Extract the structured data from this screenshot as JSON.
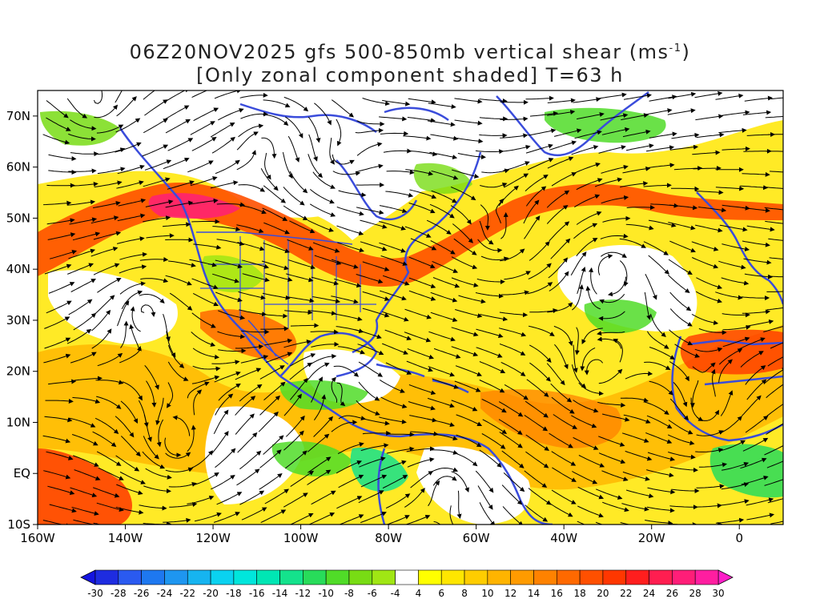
{
  "title": {
    "line1_prefix": "06Z20NOV2025 gfs 500-850mb vertical shear (ms",
    "line1_unit_exp": "-1",
    "line1_suffix": ")",
    "line2": "[Only zonal component shaded] T=63 h"
  },
  "map": {
    "lon_range": [
      -160,
      10
    ],
    "lat_range": [
      -10,
      75
    ],
    "lon_ticks": [
      {
        "value": -160,
        "label": "160W"
      },
      {
        "value": -140,
        "label": "140W"
      },
      {
        "value": -120,
        "label": "120W"
      },
      {
        "value": -100,
        "label": "100W"
      },
      {
        "value": -80,
        "label": "80W"
      },
      {
        "value": -60,
        "label": "60W"
      },
      {
        "value": -40,
        "label": "40W"
      },
      {
        "value": -20,
        "label": "20W"
      },
      {
        "value": 0,
        "label": "0"
      }
    ],
    "lat_ticks": [
      {
        "value": 70,
        "label": "70N"
      },
      {
        "value": 60,
        "label": "60N"
      },
      {
        "value": 50,
        "label": "50N"
      },
      {
        "value": 40,
        "label": "40N"
      },
      {
        "value": 30,
        "label": "30N"
      },
      {
        "value": 20,
        "label": "20N"
      },
      {
        "value": 10,
        "label": "10N"
      },
      {
        "value": 0,
        "label": "EQ"
      },
      {
        "value": -10,
        "label": "10S"
      }
    ],
    "coastline_color": "#3a4cdb",
    "streamline_color": "#000000"
  },
  "colorbar": {
    "labels": [
      "-30",
      "-28",
      "-26",
      "-24",
      "-22",
      "-20",
      "-18",
      "-16",
      "-14",
      "-12",
      "-10",
      "-8",
      "-6",
      "-4",
      "4",
      "6",
      "8",
      "10",
      "12",
      "14",
      "16",
      "18",
      "20",
      "22",
      "24",
      "26",
      "28",
      "30"
    ],
    "colors": [
      "#1e2ce0",
      "#2a5af0",
      "#1e78f0",
      "#1e96f0",
      "#16b4f0",
      "#0ad2f0",
      "#00e6dc",
      "#00e6b4",
      "#14e28c",
      "#28dc5a",
      "#50dc28",
      "#78dc14",
      "#a0e614",
      "#ffffff",
      "#ffff00",
      "#ffe600",
      "#ffcd00",
      "#ffb400",
      "#ff9b00",
      "#ff8200",
      "#ff6900",
      "#ff5000",
      "#ff3700",
      "#ff1e1e",
      "#ff1e50",
      "#ff1e78",
      "#ff1ea0"
    ],
    "low_color": "#1414e0",
    "high_color": "#ff1ec8"
  }
}
